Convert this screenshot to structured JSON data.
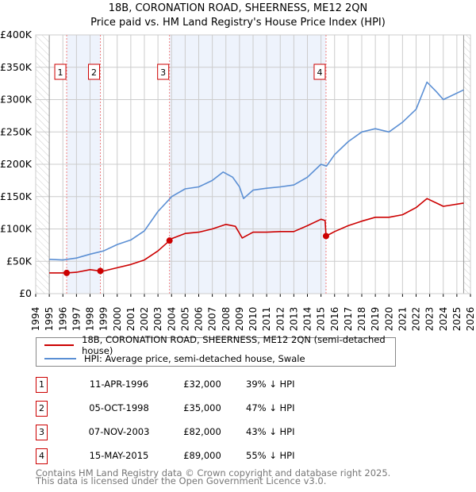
{
  "title_line1": "18B, CORONATION ROAD, SHEERNESS, ME12 2QN",
  "title_line2": "Price paid vs. HM Land Registry's House Price Index (HPI)",
  "colors": {
    "property": "#cc0000",
    "hpi": "#5b8fd4",
    "band": "#eef3fc",
    "marker_border": "#cc0000"
  },
  "chart_data": {
    "type": "line",
    "xlim": [
      1994,
      2026
    ],
    "ylim": [
      0,
      400000
    ],
    "yticks": [
      0,
      50000,
      100000,
      150000,
      200000,
      250000,
      300000,
      350000,
      400000
    ],
    "ytick_labels": [
      "£0",
      "£50K",
      "£100K",
      "£150K",
      "£200K",
      "£250K",
      "£300K",
      "£350K",
      "£400K"
    ],
    "xticks": [
      "1994",
      "1995",
      "1996",
      "1997",
      "1998",
      "1999",
      "2000",
      "2001",
      "2002",
      "2003",
      "2004",
      "2005",
      "2006",
      "2007",
      "2008",
      "2009",
      "2010",
      "2011",
      "2012",
      "2013",
      "2014",
      "2015",
      "2016",
      "2017",
      "2018",
      "2019",
      "2020",
      "2021",
      "2022",
      "2023",
      "2024",
      "2025",
      "2026"
    ],
    "grid": true,
    "data_range": [
      1995,
      2025.5
    ],
    "shaded_bands": [
      [
        1996.28,
        1998.76
      ],
      [
        2003.85,
        2015.37
      ]
    ],
    "series": [
      {
        "name": "18B, CORONATION ROAD, SHEERNESS, ME12 2QN (semi-detached house)",
        "x": [
          1995,
          1996.28,
          1997,
          1998,
          1998.76,
          1999,
          2000,
          2001,
          2002,
          2003,
          2003.85,
          2004,
          2005,
          2006,
          2007,
          2008,
          2008.7,
          2009.2,
          2010,
          2011,
          2012,
          2013,
          2014,
          2015,
          2015.3,
          2015.37,
          2016,
          2017,
          2018,
          2019,
          2020,
          2021,
          2022,
          2022.8,
          2023.5,
          2024,
          2025.5
        ],
        "y": [
          32000,
          32000,
          33000,
          37000,
          35000,
          35000,
          40000,
          45000,
          52000,
          66000,
          82000,
          85000,
          93000,
          95000,
          100000,
          107000,
          104000,
          86000,
          95000,
          95000,
          96000,
          96000,
          105000,
          115000,
          113000,
          89000,
          96000,
          105000,
          112000,
          118000,
          118000,
          122000,
          133000,
          147000,
          140000,
          135000,
          140000
        ]
      },
      {
        "name": "HPI: Average price, semi-detached house, Swale",
        "x": [
          1995,
          1996,
          1997,
          1998,
          1999,
          2000,
          2001,
          2002,
          2003,
          2003.8,
          2004,
          2005,
          2006,
          2007,
          2007.8,
          2008.5,
          2009,
          2009.3,
          2010,
          2011,
          2012,
          2013,
          2014,
          2015,
          2015.4,
          2016,
          2017,
          2018,
          2019,
          2020,
          2021,
          2022,
          2022.8,
          2023.5,
          2024,
          2025.5
        ],
        "y": [
          53000,
          52000,
          55000,
          61000,
          66000,
          76000,
          83000,
          97000,
          127000,
          145000,
          150000,
          162000,
          165000,
          175000,
          188000,
          180000,
          165000,
          147000,
          160000,
          163000,
          165000,
          168000,
          180000,
          200000,
          197000,
          215000,
          235000,
          250000,
          255000,
          250000,
          265000,
          285000,
          327000,
          312000,
          300000,
          315000
        ]
      }
    ],
    "sales": [
      {
        "label": "1",
        "x": 1996.28,
        "y": 32000
      },
      {
        "label": "2",
        "x": 1998.76,
        "y": 35000
      },
      {
        "label": "3",
        "x": 2003.85,
        "y": 82000
      },
      {
        "label": "4",
        "x": 2015.37,
        "y": 89000
      }
    ]
  },
  "legend": {
    "property": "18B, CORONATION ROAD, SHEERNESS, ME12 2QN (semi-detached house)",
    "hpi": "HPI: Average price, semi-detached house, Swale"
  },
  "transactions": [
    {
      "num": "1",
      "date": "11-APR-1996",
      "price": "£32,000",
      "hpi": "39% ↓ HPI"
    },
    {
      "num": "2",
      "date": "05-OCT-1998",
      "price": "£35,000",
      "hpi": "47% ↓ HPI"
    },
    {
      "num": "3",
      "date": "07-NOV-2003",
      "price": "£82,000",
      "hpi": "43% ↓ HPI"
    },
    {
      "num": "4",
      "date": "15-MAY-2015",
      "price": "£89,000",
      "hpi": "55% ↓ HPI"
    }
  ],
  "footer": {
    "line1": "Contains HM Land Registry data © Crown copyright and database right 2025.",
    "line2": "This data is licensed under the Open Government Licence v3.0."
  }
}
